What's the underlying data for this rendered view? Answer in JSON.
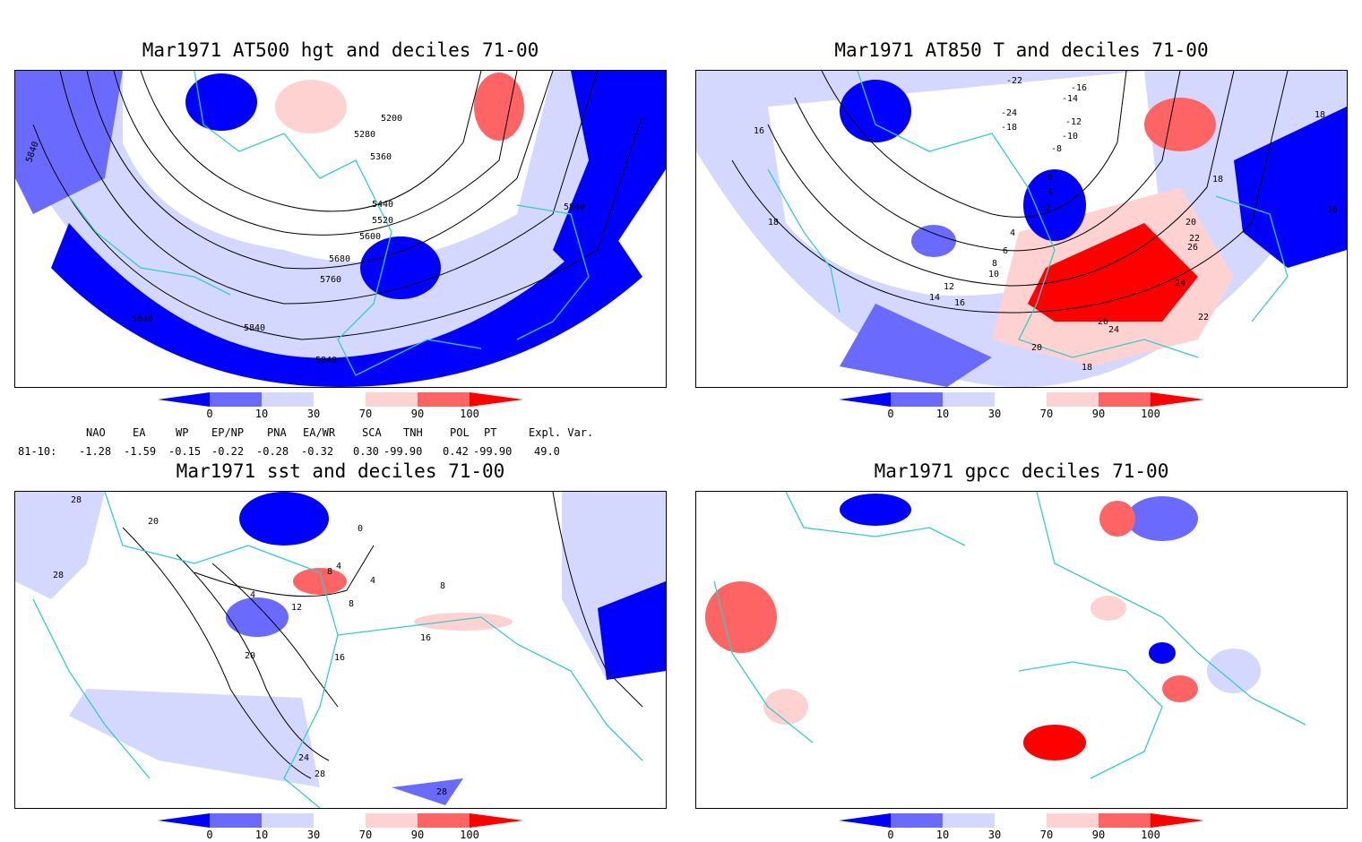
{
  "panels": {
    "p1": {
      "title": "Mar1971 AT500 hgt and deciles 71-00",
      "contours": [
        "5200",
        "5280",
        "5360",
        "5440",
        "5520",
        "5600",
        "5680",
        "5760",
        "5840",
        "5840",
        "5840",
        "5840",
        "5840"
      ]
    },
    "p2": {
      "title": "Mar1971 AT850 T and deciles 71-00",
      "contours": [
        "-22",
        "-16",
        "-14",
        "-24",
        "-12",
        "-18",
        "-10",
        "-8",
        "-6",
        "-4",
        "-2",
        "4",
        "6",
        "8",
        "10",
        "12",
        "14",
        "16",
        "16",
        "18",
        "18",
        "18",
        "16",
        "20",
        "22",
        "24",
        "26",
        "20",
        "24",
        "22",
        "20",
        "18"
      ]
    },
    "p3": {
      "title": "Mar1971 sst and deciles 71-00",
      "contours": [
        "28",
        "20",
        "28",
        "0",
        "4",
        "8",
        "4",
        "12",
        "16",
        "8",
        "8",
        "4",
        "20",
        "24",
        "28",
        "28",
        "16"
      ]
    },
    "p4": {
      "title": "Mar1971 gpcc deciles 71-00",
      "contours": []
    }
  },
  "colorbar": {
    "tick_labels": [
      "0",
      "10",
      "30",
      "70",
      "90",
      "100"
    ],
    "colors": [
      "#0000ff",
      "#6a6aff",
      "#d4d8ff",
      "#ffffff",
      "#ffd2d2",
      "#ff6464",
      "#ff0000"
    ]
  },
  "indices": {
    "headers": [
      "NAO",
      "EA",
      "WP",
      "EP/NP",
      "PNA",
      "EA/WR",
      "SCA",
      "TNH",
      "POL",
      "PT",
      "Expl. Var."
    ],
    "row_label": "81-10:",
    "values": [
      "-1.28",
      "-1.59",
      "-0.15",
      "-0.22",
      "-0.28",
      "-0.32",
      "0.30",
      "-99.90",
      "0.42",
      "-99.90",
      "49.0"
    ]
  },
  "colors": {
    "coast": "#33cccc",
    "contour": "#000000"
  }
}
